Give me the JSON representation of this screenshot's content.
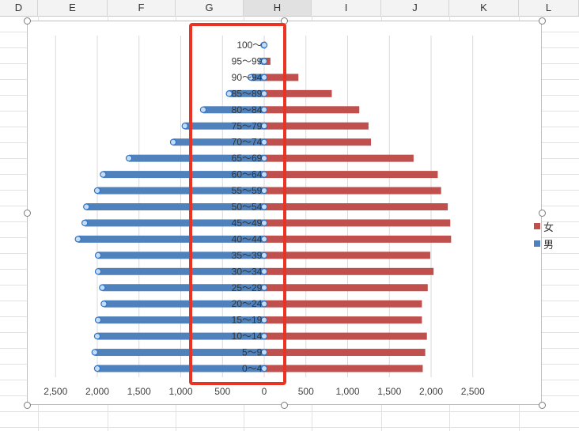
{
  "sheet": {
    "columns": [
      {
        "label": "D",
        "selected": false
      },
      {
        "label": "E",
        "selected": false
      },
      {
        "label": "F",
        "selected": false
      },
      {
        "label": "G",
        "selected": false
      },
      {
        "label": "H",
        "selected": true
      },
      {
        "label": "I",
        "selected": false
      },
      {
        "label": "J",
        "selected": false
      },
      {
        "label": "K",
        "selected": false
      },
      {
        "label": "L",
        "selected": false
      }
    ]
  },
  "chart_data": {
    "type": "bar",
    "orientation": "horizontal",
    "title": "",
    "categories": [
      "100〜",
      "95〜99",
      "90〜94",
      "85〜89",
      "80〜84",
      "75〜79",
      "70〜74",
      "65〜69",
      "60〜64",
      "55〜59",
      "50〜54",
      "45〜49",
      "40〜44",
      "35〜39",
      "30〜34",
      "25〜29",
      "20〜24",
      "15〜19",
      "10〜14",
      "5〜9",
      "0〜4"
    ],
    "series": [
      {
        "name": "女",
        "color": "#c0504d",
        "values": [
          15,
          75,
          410,
          810,
          1140,
          1250,
          1280,
          1790,
          2080,
          2120,
          2200,
          2230,
          2240,
          1990,
          2030,
          1960,
          1890,
          1890,
          1950,
          1930,
          1900
        ]
      },
      {
        "name": "男",
        "color": "#4f81bd",
        "values": [
          5,
          25,
          160,
          420,
          730,
          950,
          1090,
          1620,
          1930,
          2000,
          2130,
          2150,
          2230,
          1990,
          1990,
          1940,
          1920,
          1990,
          2000,
          2030,
          2000
        ]
      }
    ],
    "xlim": [
      -2750,
      2750
    ],
    "xticks": [
      -2500,
      -2000,
      -1500,
      -1000,
      -500,
      0,
      500,
      1000,
      1500,
      2000,
      2500
    ],
    "xtick_labels": [
      "2,500",
      "2,000",
      "1,500",
      "1,000",
      "500",
      "0",
      "500",
      "1,000",
      "1,500",
      "2,000",
      "2,500"
    ],
    "selected_series": "男",
    "legend": "right",
    "grid": "vertical"
  }
}
